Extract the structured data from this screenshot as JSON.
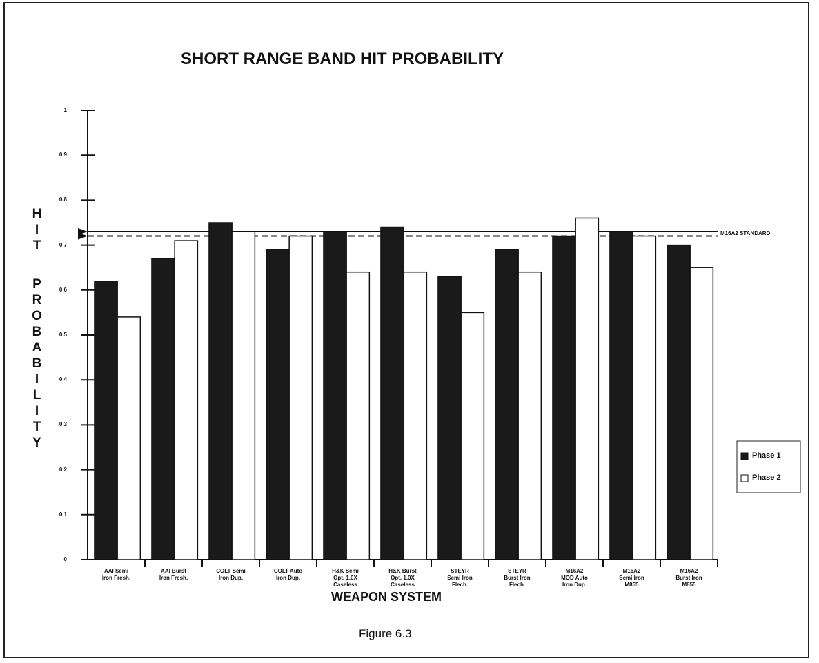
{
  "chart_data": {
    "type": "bar",
    "title": "SHORT RANGE BAND HIT PROBABILITY",
    "x_label": "WEAPON SYSTEM",
    "y_label": "HIT PROBABILITY",
    "caption": "Figure 6.3",
    "categories": [
      "AAI Semi\nIron Fresh.",
      "AAI Burst\nIron Fresh.",
      "COLT Semi\nIron Dup.",
      "COLT Auto\nIron Dup.",
      "H&K Semi\nOpt. 1.0X\nCaseless",
      "H&K Burst\nOpt. 1.0X\nCaseless",
      "STEYR\nSemi Iron\nFlech.",
      "STEYR\nBurst Iron\nFlech.",
      "M16A2\nMOD Auto\nIron Dup.",
      "M16A2\nSemi Iron\nM855",
      "M16A2\nBurst Iron\nM855"
    ],
    "series": [
      {
        "name": "Phase 1",
        "color": "#1a1a1a",
        "values": [
          0.62,
          0.67,
          0.75,
          0.69,
          0.73,
          0.74,
          0.63,
          0.69,
          0.72,
          0.73,
          0.7
        ]
      },
      {
        "name": "Phase 2",
        "color": "#ffffff",
        "values": [
          0.54,
          0.71,
          0.73,
          0.72,
          0.64,
          0.64,
          0.55,
          0.64,
          0.76,
          0.72,
          0.65
        ]
      }
    ],
    "ylim": [
      0,
      1
    ],
    "yticks": [
      0,
      0.1,
      0.2,
      0.3,
      0.4,
      0.5,
      0.6,
      0.7,
      0.8,
      0.9,
      1
    ],
    "reference_lines": [
      {
        "value": 0.73,
        "style": "solid"
      },
      {
        "value": 0.72,
        "style": "dashed"
      }
    ],
    "reference_label": "M16A2 STANDARD",
    "legend": "right",
    "grid": false
  }
}
